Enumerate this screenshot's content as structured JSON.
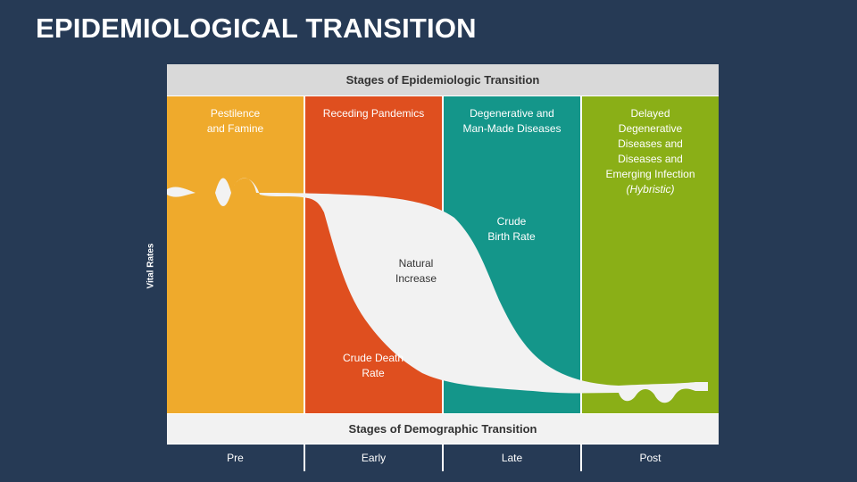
{
  "title": "EPIDEMIOLOGICAL TRANSITION",
  "y_axis_label": "Vital Rates",
  "top_header": "Stages of Epidemiologic Transition",
  "bands": [
    {
      "lines": [
        "Pestilence",
        "and Famine"
      ],
      "color": "#efaa2c"
    },
    {
      "lines": [
        "Receding Pandemics"
      ],
      "color": "#df4f1f"
    },
    {
      "lines": [
        "Degenerative and",
        "Man-Made Diseases"
      ],
      "color": "#14968a"
    },
    {
      "lines": [
        "Delayed",
        "Degenerative",
        "Diseases and",
        "Diseases and",
        "Emerging Infection"
      ],
      "sub": "(Hybristic)",
      "color": "#8aaf17"
    }
  ],
  "annotations": {
    "birth_rate": [
      "Crude",
      "Birth Rate"
    ],
    "natural_increase": [
      "Natural",
      "Increase"
    ],
    "death_rate": [
      "Crude Death",
      "Rate"
    ]
  },
  "bottom_header": "Stages of Demographic Transition",
  "stages": [
    "Pre",
    "Early",
    "Late",
    "Post"
  ],
  "colors": {
    "background": "#263a55",
    "curve_fill": "#f2f2f2"
  }
}
